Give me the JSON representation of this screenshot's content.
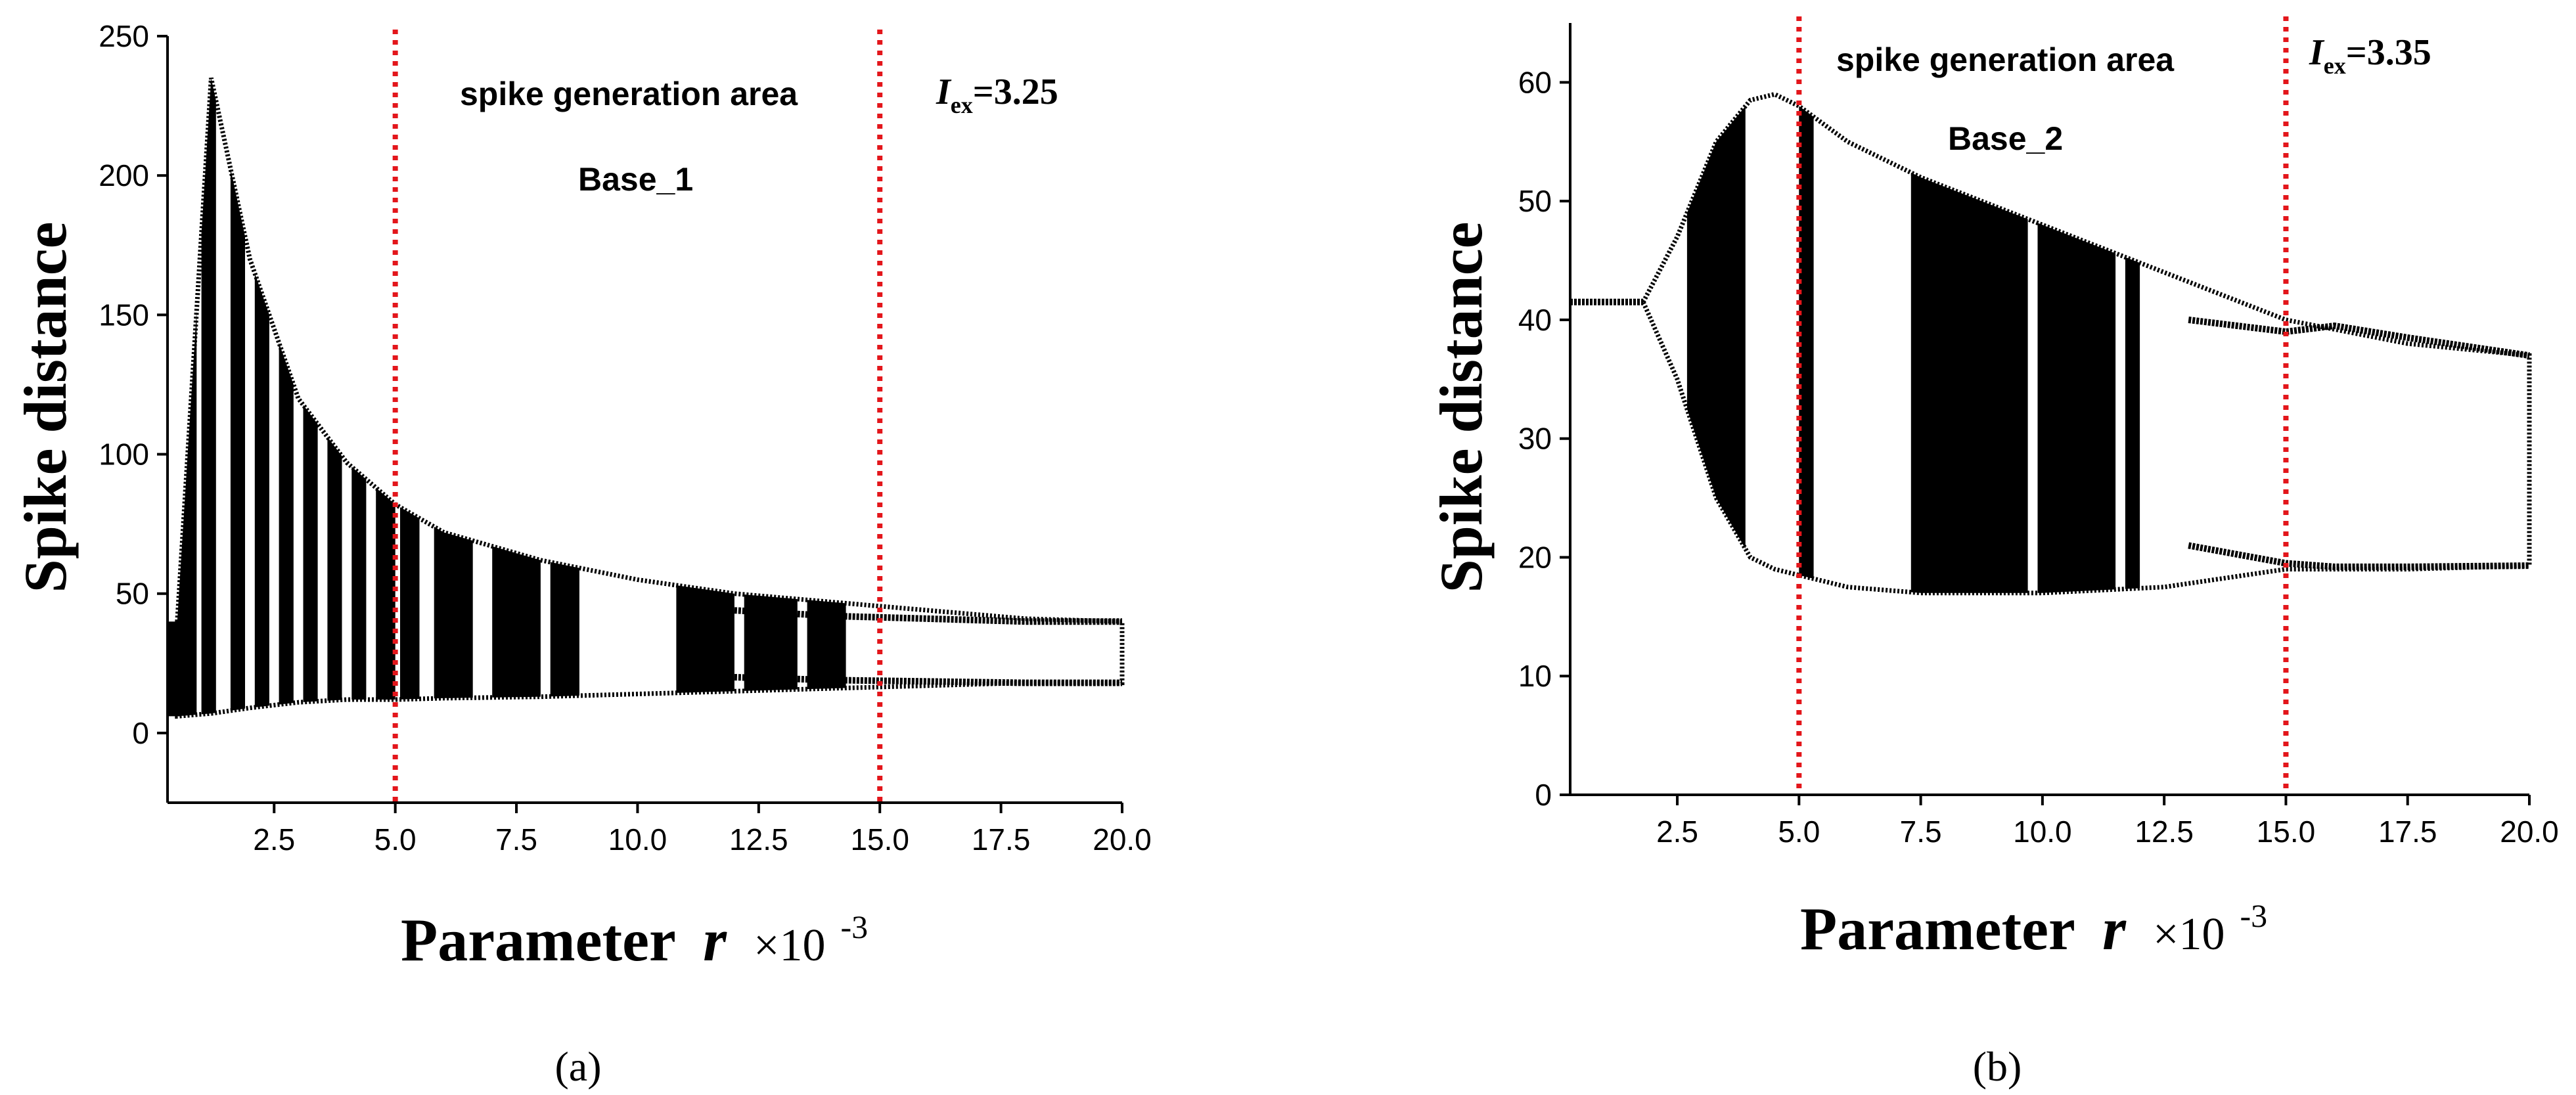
{
  "figure": {
    "captions": [
      "(a)",
      "(b)"
    ]
  },
  "chart_data": [
    {
      "type": "scatter",
      "panel": "a",
      "title": "",
      "ylabel": "Spike distance",
      "xlabel_text": "Parameter",
      "xlabel_var": "r",
      "xlabel_scale": "×10",
      "xlabel_exp": "-3",
      "xlim": [
        0.3,
        20.0
      ],
      "ylim": [
        -25,
        250
      ],
      "xticks": [
        2.5,
        5.0,
        7.5,
        10.0,
        12.5,
        15.0,
        17.5,
        20.0
      ],
      "xtick_labels": [
        "2.5",
        "5.0",
        "7.5",
        "10.0",
        "12.5",
        "15.0",
        "17.5",
        "20.0"
      ],
      "yticks": [
        0,
        50,
        100,
        150,
        200,
        250
      ],
      "ytick_labels": [
        "0",
        "50",
        "100",
        "150",
        "200",
        "250"
      ],
      "vlines": [
        5.0,
        15.0
      ],
      "vline_color": "#e3161b",
      "annotations": {
        "area": "spike generation area",
        "base": "Base_1",
        "iex_label": "I",
        "iex_sub": "ex",
        "iex_value": "=3.25"
      },
      "envelope_x": [
        0.5,
        1.2,
        2.0,
        3.0,
        4.0,
        5.0,
        6.0,
        8.0,
        10.0,
        12.0,
        14.0,
        16.0,
        18.0,
        20.0
      ],
      "envelope_upper": [
        40,
        235,
        170,
        120,
        97,
        82,
        72,
        62,
        55,
        50,
        47,
        44,
        41,
        40
      ],
      "envelope_lower": [
        6,
        7,
        9,
        11,
        12,
        12,
        12.5,
        13,
        14,
        15,
        16,
        17,
        18,
        18
      ],
      "branches": [
        {
          "name": "upper branch (period-2)",
          "x": [
            12.0,
            14.0,
            16.0,
            18.0,
            20.0
          ],
          "y": [
            44,
            42,
            41,
            40,
            40
          ]
        },
        {
          "name": "lower branch (period-2)",
          "x": [
            12.0,
            14.0,
            16.0,
            18.0,
            20.0
          ],
          "y": [
            20,
            19,
            18.5,
            18,
            18
          ]
        }
      ],
      "chaotic_bands": [
        [
          0.3,
          0.9
        ],
        [
          1.0,
          1.3
        ],
        [
          1.6,
          1.9
        ],
        [
          2.1,
          2.4
        ],
        [
          2.6,
          2.9
        ],
        [
          3.1,
          3.4
        ],
        [
          3.6,
          3.9
        ],
        [
          4.1,
          4.4
        ],
        [
          4.6,
          5.0
        ],
        [
          5.1,
          5.5
        ],
        [
          5.8,
          6.6
        ],
        [
          7.0,
          8.0
        ],
        [
          8.2,
          8.8
        ],
        [
          10.8,
          12.0
        ],
        [
          12.2,
          13.3
        ],
        [
          13.5,
          14.3
        ]
      ]
    },
    {
      "type": "scatter",
      "panel": "b",
      "title": "",
      "ylabel": "Spike distance",
      "xlabel_text": "Parameter",
      "xlabel_var": "r",
      "xlabel_scale": "×10",
      "xlabel_exp": "-3",
      "xlim": [
        0.3,
        20.0
      ],
      "ylim": [
        0,
        65
      ],
      "xticks": [
        2.5,
        5.0,
        7.5,
        10.0,
        12.5,
        15.0,
        17.5,
        20.0
      ],
      "xtick_labels": [
        "2.5",
        "5.0",
        "7.5",
        "10.0",
        "12.5",
        "15.0",
        "17.5",
        "20.0"
      ],
      "yticks": [
        0,
        10,
        20,
        30,
        40,
        50,
        60
      ],
      "ytick_labels": [
        "0",
        "10",
        "20",
        "30",
        "40",
        "50",
        "60"
      ],
      "vlines": [
        5.0,
        15.0
      ],
      "vline_color": "#e3161b",
      "annotations": {
        "area": "spike generation area",
        "base": "Base_2",
        "iex_label": "I",
        "iex_sub": "ex",
        "iex_value": "=3.35"
      },
      "envelope_x": [
        1.8,
        2.5,
        3.3,
        4.0,
        4.5,
        5.0,
        6.0,
        7.5,
        10.0,
        12.5,
        15.0,
        17.5,
        20.0
      ],
      "envelope_upper": [
        41.5,
        47,
        55,
        58.5,
        59,
        58,
        55,
        52,
        48,
        44,
        40,
        38,
        37
      ],
      "envelope_lower": [
        41.5,
        35,
        25,
        20,
        19,
        18.5,
        17.5,
        17,
        17,
        17.5,
        19,
        19,
        19.3
      ],
      "branches": [
        {
          "name": "upper branch",
          "x": [
            13.0,
            15.0,
            16.0,
            17.5,
            20.0
          ],
          "y": [
            40,
            39,
            39.5,
            38.5,
            37
          ]
        },
        {
          "name": "lower branch",
          "x": [
            13.0,
            15.0,
            16.0,
            17.5,
            20.0
          ],
          "y": [
            21,
            19.5,
            19.2,
            19.2,
            19.3
          ]
        },
        {
          "name": "initial branch",
          "x": [
            0.3,
            1.0,
            1.8
          ],
          "y": [
            41.5,
            41.5,
            41.5
          ]
        }
      ],
      "chaotic_bands": [
        [
          2.7,
          3.9
        ],
        [
          5.0,
          5.3
        ],
        [
          7.3,
          9.7
        ],
        [
          9.9,
          11.5
        ],
        [
          11.7,
          12.0
        ]
      ]
    }
  ]
}
